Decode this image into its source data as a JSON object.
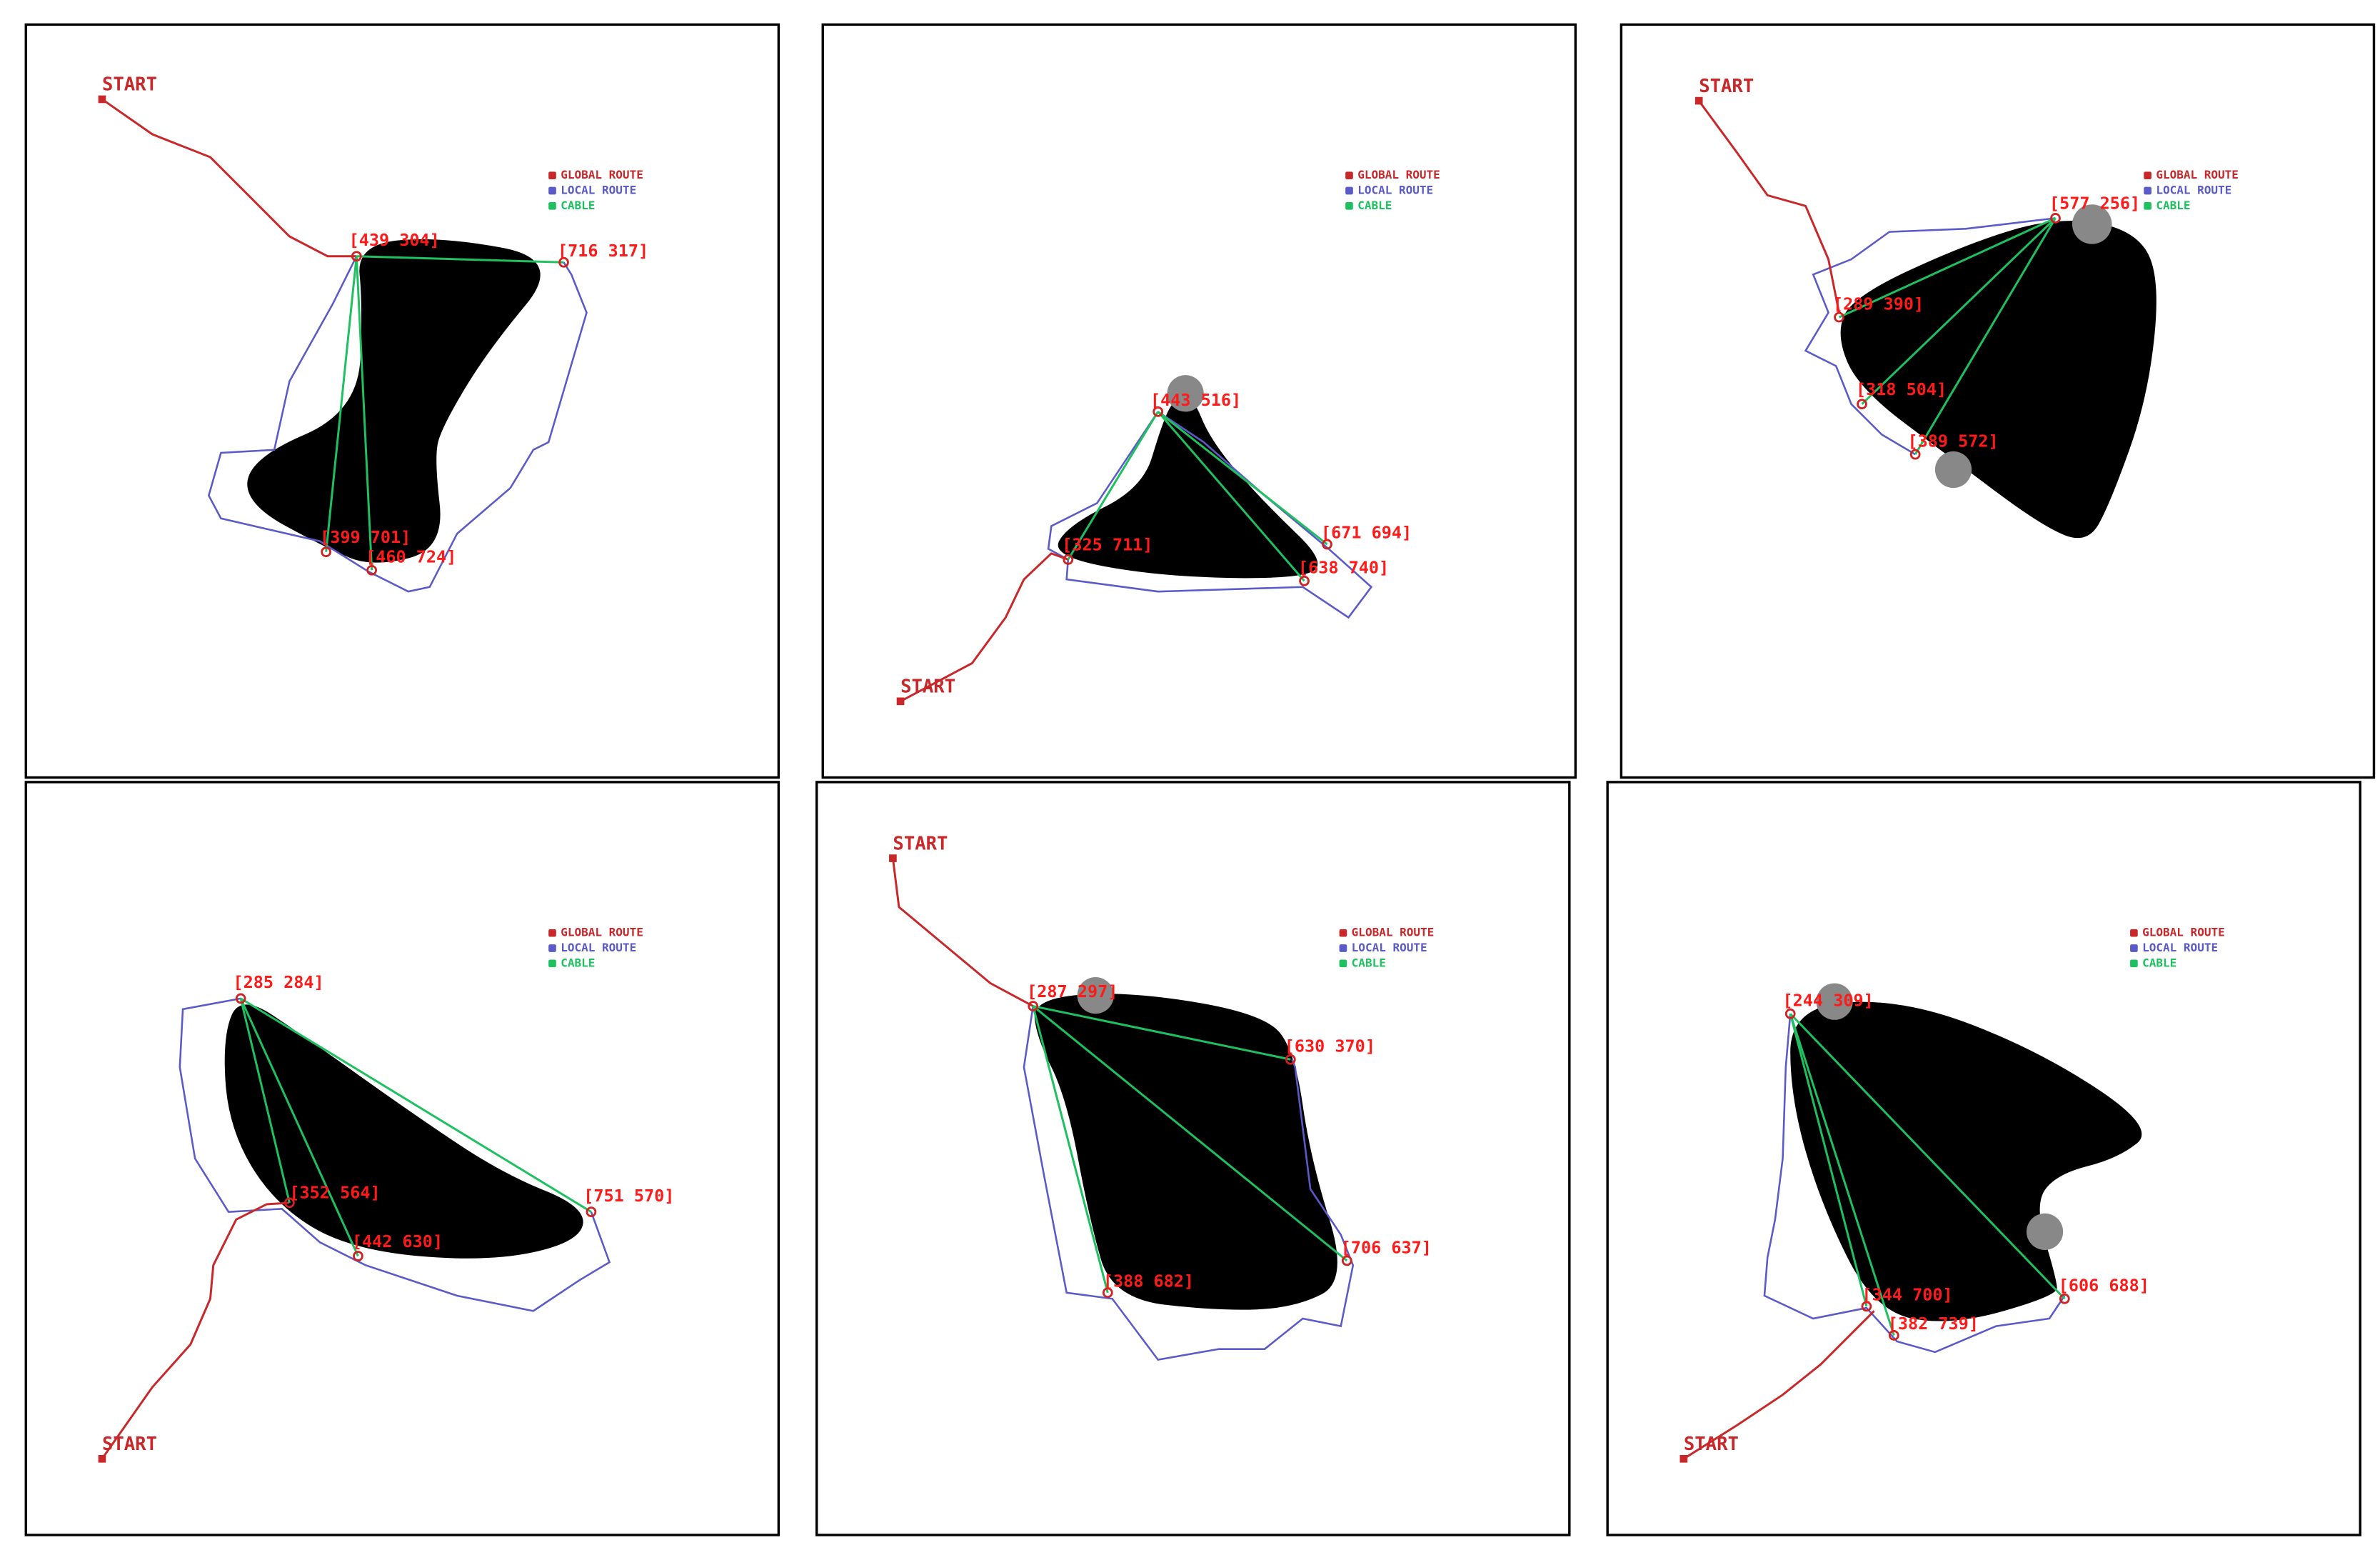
{
  "panels": [
    {
      "start": "START",
      "legend": [
        "GLOBAL ROUTE",
        "LOCAL ROUTE",
        "CABLE"
      ],
      "points": [
        "[439 304]",
        "[716 317]",
        "[399 701]",
        "[460 724]"
      ]
    },
    {
      "start": "START",
      "legend": [
        "GLOBAL ROUTE",
        "LOCAL ROUTE",
        "CABLE"
      ],
      "points": [
        "[443 516]",
        "[671 694]",
        "[325 711]",
        "[638 740]"
      ]
    },
    {
      "start": "START",
      "legend": [
        "GLOBAL ROUTE",
        "LOCAL ROUTE",
        "CABLE"
      ],
      "points": [
        "[577 256]",
        "[289 390]",
        "[318 504]",
        "[389 572]"
      ]
    },
    {
      "start": "START",
      "legend": [
        "GLOBAL ROUTE",
        "LOCAL ROUTE",
        "CABLE"
      ],
      "points": [
        "[285 284]",
        "[352 564]",
        "[442 630]",
        "[751 570]"
      ]
    },
    {
      "start": "START",
      "legend": [
        "GLOBAL ROUTE",
        "LOCAL ROUTE",
        "CABLE"
      ],
      "points": [
        "[287 297]",
        "[630 370]",
        "[706 637]",
        "[388 682]"
      ]
    },
    {
      "start": "START",
      "legend": [
        "GLOBAL ROUTE",
        "LOCAL ROUTE",
        "CABLE"
      ],
      "points": [
        "[244 309]",
        "[344 700]",
        "[382 739]",
        "[606 688]"
      ]
    }
  ]
}
